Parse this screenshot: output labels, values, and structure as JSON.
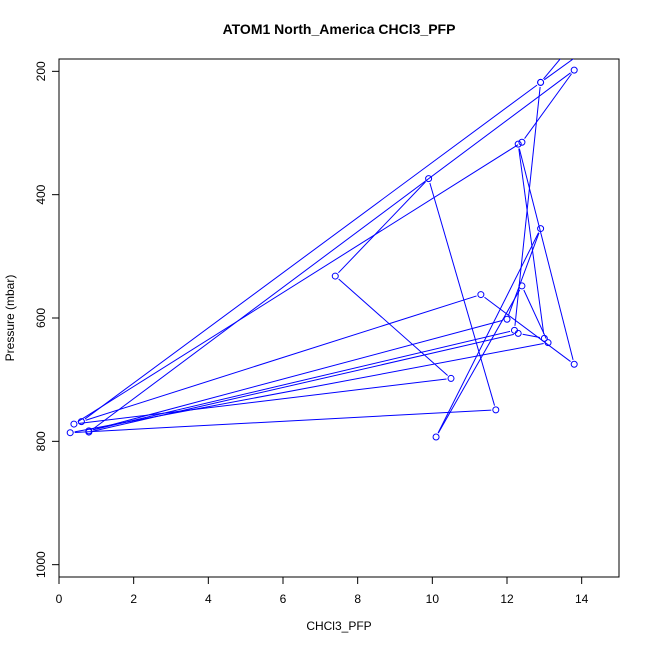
{
  "chart_data": {
    "type": "line",
    "title": "ATOM1 North_America CHCl3_PFP",
    "xlabel": "CHCl3_PFP",
    "ylabel": "Pressure (mbar)",
    "xlim": [
      0,
      15
    ],
    "ylim": [
      1020,
      180
    ],
    "y_reversed": true,
    "x_ticks": [
      0,
      2,
      4,
      6,
      8,
      10,
      12,
      14
    ],
    "y_ticks": [
      200,
      400,
      600,
      800,
      1000
    ],
    "grid": false,
    "legend": "none",
    "series_color": "#0000ff",
    "series": [
      {
        "x": [
          13.7,
          12.9,
          12.2,
          0.8,
          12.0,
          12.9,
          10.1,
          12.4,
          13.1,
          0.3,
          11.7,
          9.9,
          7.4,
          10.5,
          0.4,
          12.4,
          13.8,
          0.8,
          12.3,
          13.0,
          12.3,
          13.8,
          11.3,
          0.6,
          12.9,
          14.0
        ],
        "y": [
          160,
          218,
          620,
          783,
          602,
          455,
          793,
          548,
          640,
          786,
          749,
          374,
          532,
          698,
          772,
          315,
          198,
          785,
          625,
          633,
          318,
          675,
          562,
          768,
          218,
          170
        ]
      }
    ]
  }
}
